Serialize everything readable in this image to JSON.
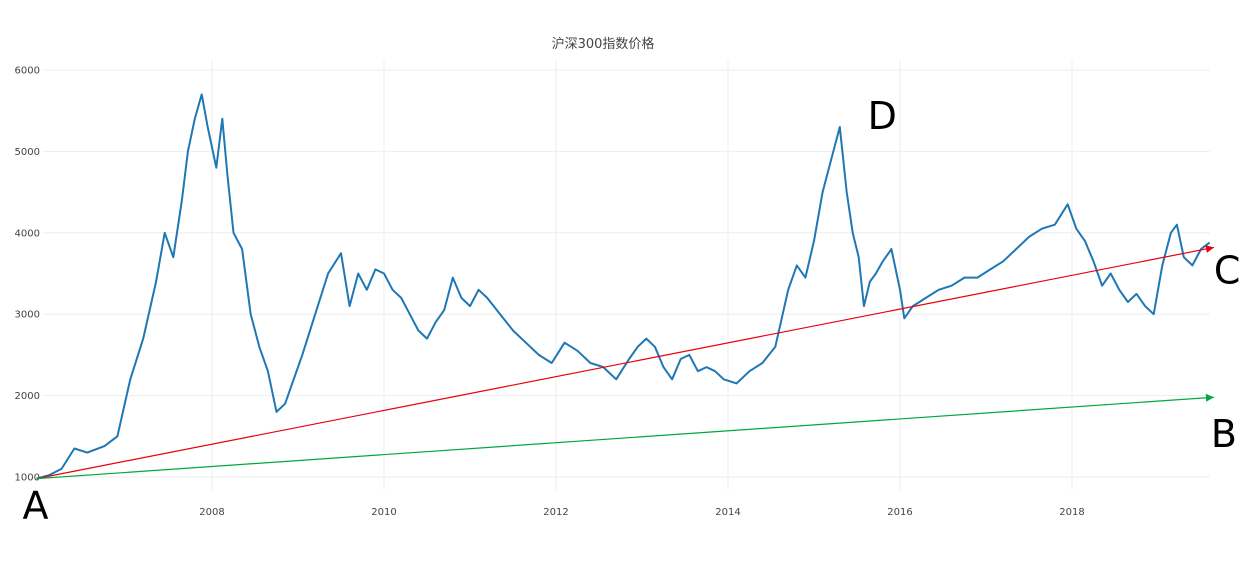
{
  "colors": {
    "background": "#ffffff",
    "grid": "#eeeeee",
    "index_line": "#1f77b4",
    "line_AC": "#e8000b",
    "line_AB": "#00a83e"
  },
  "chart_data": {
    "type": "line",
    "title": "沪深300指数价格",
    "xlabel": "",
    "ylabel": "",
    "xlim": [
      2005.9,
      2019.7
    ],
    "ylim": [
      900,
      6150
    ],
    "x_ticks": [
      2008,
      2010,
      2012,
      2014,
      2016,
      2018
    ],
    "x_tick_labels": [
      "2008",
      "2010",
      "2012",
      "2014",
      "2016",
      "2018"
    ],
    "y_ticks": [
      1000,
      2000,
      3000,
      4000,
      5000,
      6000
    ],
    "y_tick_labels": [
      "1000",
      "2000",
      "3000",
      "4000",
      "5000",
      "6000"
    ],
    "grid": true,
    "legend": "none",
    "series": [
      {
        "x": [
          2005.96,
          2006.1,
          2006.25,
          2006.4,
          2006.55,
          2006.75,
          2006.9,
          2007.05,
          2007.2,
          2007.35,
          2007.45,
          2007.55,
          2007.65,
          2007.72,
          2007.8,
          2007.88,
          2007.95,
          2008.05,
          2008.12,
          2008.18,
          2008.25,
          2008.35,
          2008.45,
          2008.55,
          2008.65,
          2008.75,
          2008.85,
          2008.95,
          2009.05,
          2009.2,
          2009.35,
          2009.5,
          2009.6,
          2009.7,
          2009.8,
          2009.9,
          2010.0,
          2010.1,
          2010.2,
          2010.3,
          2010.4,
          2010.5,
          2010.6,
          2010.7,
          2010.8,
          2010.9,
          2011.0,
          2011.1,
          2011.2,
          2011.35,
          2011.5,
          2011.65,
          2011.8,
          2011.95,
          2012.1,
          2012.25,
          2012.4,
          2012.55,
          2012.7,
          2012.85,
          2012.95,
          2013.05,
          2013.15,
          2013.25,
          2013.35,
          2013.45,
          2013.55,
          2013.65,
          2013.75,
          2013.85,
          2013.95,
          2014.1,
          2014.25,
          2014.4,
          2014.55,
          2014.7,
          2014.8,
          2014.9,
          2015.0,
          2015.1,
          2015.2,
          2015.3,
          2015.38,
          2015.45,
          2015.52,
          2015.58,
          2015.65,
          2015.72,
          2015.8,
          2015.9,
          2016.0,
          2016.05,
          2016.15,
          2016.3,
          2016.45,
          2016.6,
          2016.75,
          2016.9,
          2017.05,
          2017.2,
          2017.35,
          2017.5,
          2017.65,
          2017.8,
          2017.95,
          2018.05,
          2018.15,
          2018.25,
          2018.35,
          2018.45,
          2018.55,
          2018.65,
          2018.75,
          2018.85,
          2018.95,
          2019.05,
          2019.15,
          2019.22,
          2019.3,
          2019.4,
          2019.5,
          2019.6
        ],
        "y": [
          980,
          1020,
          1100,
          1350,
          1300,
          1380,
          1500,
          2200,
          2700,
          3400,
          4000,
          3700,
          4400,
          5000,
          5400,
          5700,
          5300,
          4800,
          5400,
          4700,
          4000,
          3800,
          3000,
          2600,
          2300,
          1800,
          1900,
          2200,
          2500,
          3000,
          3500,
          3750,
          3100,
          3500,
          3300,
          3550,
          3500,
          3300,
          3200,
          3000,
          2800,
          2700,
          2900,
          3050,
          3450,
          3200,
          3100,
          3300,
          3200,
          3000,
          2800,
          2650,
          2500,
          2400,
          2650,
          2550,
          2400,
          2350,
          2200,
          2450,
          2600,
          2700,
          2600,
          2350,
          2200,
          2450,
          2500,
          2300,
          2350,
          2300,
          2200,
          2150,
          2300,
          2400,
          2600,
          3300,
          3600,
          3450,
          3900,
          4500,
          4900,
          5300,
          4500,
          4000,
          3700,
          3100,
          3400,
          3500,
          3650,
          3800,
          3300,
          2950,
          3100,
          3200,
          3300,
          3350,
          3450,
          3450,
          3550,
          3650,
          3800,
          3950,
          4050,
          4100,
          4350,
          4050,
          3900,
          3650,
          3350,
          3500,
          3300,
          3150,
          3250,
          3100,
          3000,
          3600,
          4000,
          4100,
          3700,
          3600,
          3800,
          3880
        ]
      },
      {
        "x": [
          2005.96,
          2019.65
        ],
        "y": [
          980,
          3820
        ]
      },
      {
        "x": [
          2005.96,
          2019.65
        ],
        "y": [
          980,
          1980
        ]
      }
    ],
    "annotations": [
      {
        "text": "A",
        "x": 2005.96,
        "y": 980
      },
      {
        "text": "B",
        "x": 2019.65,
        "y": 1980
      },
      {
        "text": "C",
        "x": 2019.65,
        "y": 3820
      },
      {
        "text": "D",
        "x": 2015.38,
        "y": 5300
      }
    ]
  }
}
